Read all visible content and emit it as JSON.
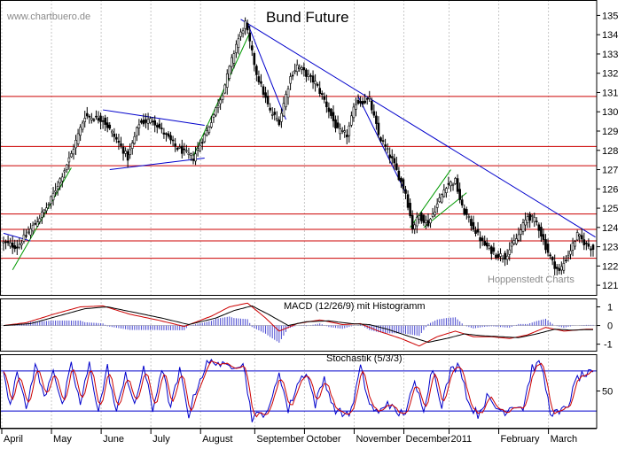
{
  "watermark": "www.chartbuero.de",
  "credit": "Hoppenstedt Charts",
  "chart_data": [
    {
      "type": "candlestick",
      "title": "Bund Future",
      "ylim": [
        120.5,
        135.8
      ],
      "yticks": [
        121,
        122,
        123,
        124,
        125,
        126,
        127,
        128,
        129,
        130,
        131,
        132,
        133,
        134,
        135
      ],
      "x_labels": [
        "April",
        "May",
        "June",
        "July",
        "August",
        "September",
        "October",
        "November",
        "December",
        "2011",
        "February",
        "March"
      ],
      "x_label_pos": [
        0,
        22,
        44,
        66,
        88,
        112,
        134,
        156,
        178,
        198,
        220,
        242
      ],
      "n_bars": 262,
      "close_anchors": [
        [
          0,
          123.2
        ],
        [
          6,
          123.0
        ],
        [
          14,
          124.2
        ],
        [
          20,
          125.2
        ],
        [
          30,
          127.8
        ],
        [
          36,
          129.8
        ],
        [
          44,
          129.6
        ],
        [
          52,
          128.2
        ],
        [
          55,
          127.6
        ],
        [
          60,
          129.4
        ],
        [
          66,
          129.6
        ],
        [
          76,
          128.2
        ],
        [
          84,
          127.6
        ],
        [
          90,
          129.0
        ],
        [
          97,
          131.0
        ],
        [
          103,
          133.5
        ],
        [
          107,
          134.6
        ],
        [
          112,
          132.0
        ],
        [
          118,
          130.0
        ],
        [
          122,
          129.5
        ],
        [
          127,
          131.8
        ],
        [
          130,
          132.4
        ],
        [
          138,
          131.5
        ],
        [
          142,
          130.6
        ],
        [
          148,
          129.0
        ],
        [
          152,
          128.8
        ],
        [
          156,
          130.5
        ],
        [
          162,
          130.6
        ],
        [
          166,
          128.8
        ],
        [
          172,
          127.5
        ],
        [
          178,
          125.8
        ],
        [
          181,
          124.0
        ],
        [
          184,
          124.6
        ],
        [
          188,
          124.2
        ],
        [
          196,
          126.2
        ],
        [
          200,
          126.4
        ],
        [
          203,
          125.0
        ],
        [
          208,
          124.0
        ],
        [
          212,
          123.2
        ],
        [
          218,
          122.6
        ],
        [
          222,
          122.5
        ],
        [
          228,
          123.6
        ],
        [
          232,
          124.6
        ],
        [
          236,
          124.3
        ],
        [
          240,
          123.0
        ],
        [
          243,
          122.2
        ],
        [
          246,
          121.7
        ],
        [
          250,
          122.6
        ],
        [
          254,
          123.6
        ],
        [
          258,
          123.1
        ],
        [
          261,
          122.9
        ]
      ],
      "horizontal_levels": [
        122.4,
        123.3,
        123.9,
        124.7,
        127.2,
        128.2,
        130.8
      ],
      "trendlines": [
        {
          "color": "#0000cc",
          "points": [
            [
              0,
              123.7
            ],
            [
              12,
              123.3
            ]
          ]
        },
        {
          "color": "#009900",
          "points": [
            [
              4,
              121.8
            ],
            [
              30,
              127.1
            ]
          ]
        },
        {
          "color": "#0000cc",
          "points": [
            [
              44,
              130.1
            ],
            [
              89,
              129.3
            ]
          ]
        },
        {
          "color": "#0000cc",
          "points": [
            [
              47,
              127.0
            ],
            [
              89,
              127.6
            ]
          ]
        },
        {
          "color": "#009900",
          "points": [
            [
              84,
              127.7
            ],
            [
              109,
              134.1
            ]
          ]
        },
        {
          "color": "#0000cc",
          "points": [
            [
              105,
              134.8
            ],
            [
              262,
              123.5
            ]
          ]
        },
        {
          "color": "#0000cc",
          "points": [
            [
              108,
              134.6
            ],
            [
              125,
              129.6
            ]
          ]
        },
        {
          "color": "#0000cc",
          "points": [
            [
              157,
              130.8
            ],
            [
              178,
              125.8
            ]
          ]
        },
        {
          "color": "#009900",
          "points": [
            [
              180,
              124.0
            ],
            [
              198,
              127.0
            ]
          ]
        },
        {
          "color": "#009900",
          "points": [
            [
              186,
              124.0
            ],
            [
              205,
              125.8
            ]
          ]
        }
      ]
    },
    {
      "type": "line",
      "title": "MACD (12/26/9) mit Histogramm",
      "ylim": [
        -1.35,
        1.45
      ],
      "yticks": [
        -1,
        0,
        1
      ],
      "series": [
        {
          "color": "#cc0000",
          "values": [
            [
              0,
              0.0
            ],
            [
              10,
              0.15
            ],
            [
              22,
              0.6
            ],
            [
              34,
              1.0
            ],
            [
              44,
              1.05
            ],
            [
              56,
              0.6
            ],
            [
              68,
              0.3
            ],
            [
              80,
              -0.05
            ],
            [
              92,
              0.5
            ],
            [
              100,
              1.0
            ],
            [
              108,
              1.2
            ],
            [
              116,
              0.4
            ],
            [
              122,
              -0.3
            ],
            [
              130,
              0.1
            ],
            [
              140,
              0.3
            ],
            [
              150,
              0.05
            ],
            [
              158,
              0.1
            ],
            [
              166,
              -0.3
            ],
            [
              176,
              -0.7
            ],
            [
              184,
              -1.1
            ],
            [
              192,
              -0.6
            ],
            [
              200,
              -0.3
            ],
            [
              208,
              -0.6
            ],
            [
              216,
              -0.6
            ],
            [
              224,
              -0.7
            ],
            [
              232,
              -0.5
            ],
            [
              240,
              -0.1
            ],
            [
              248,
              -0.3
            ],
            [
              258,
              -0.2
            ]
          ]
        },
        {
          "color": "#000000",
          "values": [
            [
              0,
              0.0
            ],
            [
              12,
              0.1
            ],
            [
              24,
              0.5
            ],
            [
              36,
              0.9
            ],
            [
              46,
              1.0
            ],
            [
              58,
              0.7
            ],
            [
              70,
              0.4
            ],
            [
              82,
              0.05
            ],
            [
              94,
              0.4
            ],
            [
              102,
              0.8
            ],
            [
              110,
              1.05
            ],
            [
              118,
              0.55
            ],
            [
              126,
              0.0
            ],
            [
              134,
              0.2
            ],
            [
              144,
              0.25
            ],
            [
              154,
              0.1
            ],
            [
              162,
              0.05
            ],
            [
              170,
              -0.2
            ],
            [
              180,
              -0.6
            ],
            [
              188,
              -0.9
            ],
            [
              196,
              -0.7
            ],
            [
              204,
              -0.45
            ],
            [
              212,
              -0.55
            ],
            [
              220,
              -0.6
            ],
            [
              228,
              -0.65
            ],
            [
              236,
              -0.45
            ],
            [
              244,
              -0.2
            ],
            [
              252,
              -0.25
            ],
            [
              258,
              -0.22
            ]
          ]
        }
      ]
    },
    {
      "type": "line",
      "title": "Stochastik (5/3/3)",
      "ylim": [
        -5,
        105
      ],
      "yticks": [
        50
      ],
      "levels": [
        20,
        80
      ],
      "series": [
        {
          "color": "#0000cc",
          "name": ""
        },
        {
          "color": "#cc0000",
          "name": ""
        }
      ],
      "anchors": [
        [
          0,
          80
        ],
        [
          3,
          30
        ],
        [
          6,
          85
        ],
        [
          10,
          20
        ],
        [
          14,
          90
        ],
        [
          18,
          40
        ],
        [
          22,
          85
        ],
        [
          26,
          25
        ],
        [
          30,
          88
        ],
        [
          34,
          30
        ],
        [
          38,
          90
        ],
        [
          42,
          20
        ],
        [
          46,
          85
        ],
        [
          50,
          15
        ],
        [
          54,
          80
        ],
        [
          58,
          25
        ],
        [
          62,
          88
        ],
        [
          66,
          20
        ],
        [
          70,
          85
        ],
        [
          74,
          25
        ],
        [
          78,
          80
        ],
        [
          82,
          15
        ],
        [
          86,
          60
        ],
        [
          90,
          90
        ],
        [
          94,
          95
        ],
        [
          98,
          85
        ],
        [
          102,
          90
        ],
        [
          106,
          92
        ],
        [
          110,
          10
        ],
        [
          114,
          15
        ],
        [
          118,
          25
        ],
        [
          122,
          80
        ],
        [
          126,
          20
        ],
        [
          130,
          60
        ],
        [
          134,
          80
        ],
        [
          138,
          30
        ],
        [
          142,
          70
        ],
        [
          146,
          25
        ],
        [
          150,
          15
        ],
        [
          154,
          20
        ],
        [
          158,
          85
        ],
        [
          162,
          30
        ],
        [
          166,
          15
        ],
        [
          170,
          35
        ],
        [
          174,
          15
        ],
        [
          178,
          20
        ],
        [
          182,
          60
        ],
        [
          186,
          25
        ],
        [
          190,
          85
        ],
        [
          194,
          30
        ],
        [
          198,
          80
        ],
        [
          202,
          90
        ],
        [
          206,
          30
        ],
        [
          210,
          15
        ],
        [
          214,
          40
        ],
        [
          218,
          25
        ],
        [
          222,
          20
        ],
        [
          226,
          30
        ],
        [
          230,
          25
        ],
        [
          234,
          85
        ],
        [
          238,
          90
        ],
        [
          242,
          20
        ],
        [
          246,
          15
        ],
        [
          250,
          30
        ],
        [
          254,
          70
        ],
        [
          258,
          75
        ]
      ]
    }
  ]
}
